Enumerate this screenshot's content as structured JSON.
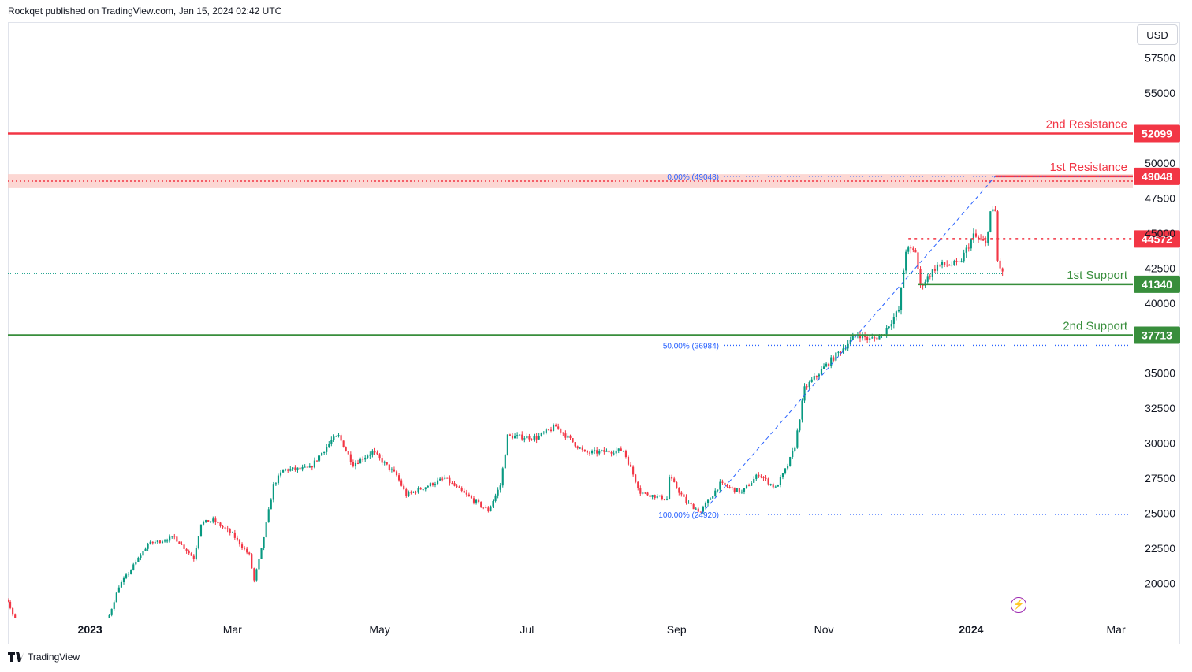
{
  "header": {
    "publisher_text": "Rockqet published on TradingView.com, Jan 15, 2024 02:42 UTC"
  },
  "currency": "USD",
  "footer": {
    "brand": "TradingView",
    "logo_icon": "tradingview-logo-icon"
  },
  "alert_icon": "lightning-icon",
  "chart_data": {
    "type": "candlestick",
    "title": "",
    "xlabel": "",
    "ylabel": "",
    "ylim": [
      17500,
      60000
    ],
    "x_range": [
      "2022-11-28",
      "2024-03-08"
    ],
    "x_ticks": [
      {
        "label": "2023",
        "date": "2023-01-01",
        "bold": true
      },
      {
        "label": "Mar",
        "date": "2023-03-01",
        "bold": false
      },
      {
        "label": "May",
        "date": "2023-05-01",
        "bold": false
      },
      {
        "label": "Jul",
        "date": "2023-07-01",
        "bold": false
      },
      {
        "label": "Sep",
        "date": "2023-09-01",
        "bold": false
      },
      {
        "label": "Nov",
        "date": "2023-11-01",
        "bold": false
      },
      {
        "label": "2024",
        "date": "2024-01-01",
        "bold": true
      },
      {
        "label": "Mar",
        "date": "2024-03-01",
        "bold": false
      }
    ],
    "y_ticks": [
      {
        "label": "57500",
        "value": 57500
      },
      {
        "label": "55000",
        "value": 55000
      },
      {
        "label": "50000",
        "value": 50000
      },
      {
        "label": "47500",
        "value": 47500
      },
      {
        "label": "45000",
        "value": 45000
      },
      {
        "label": "42500",
        "value": 42500
      },
      {
        "label": "40000",
        "value": 40000
      },
      {
        "label": "35000",
        "value": 35000
      },
      {
        "label": "32500",
        "value": 32500
      },
      {
        "label": "30000",
        "value": 30000
      },
      {
        "label": "27500",
        "value": 27500
      },
      {
        "label": "25000",
        "value": 25000
      },
      {
        "label": "22500",
        "value": 22500
      },
      {
        "label": "20000",
        "value": 20000
      }
    ],
    "colors": {
      "up": "#089981",
      "down": "#f23645",
      "resistance": "#f23645",
      "support": "#388e3c",
      "fib": "#2962ff"
    },
    "levels": [
      {
        "name": "2nd Resistance",
        "value": 52099,
        "label": "52099",
        "kind": "resistance",
        "style": "solid",
        "from": "2022-11-28"
      },
      {
        "name": "1st Resistance",
        "value": 49048,
        "label": "49048",
        "kind": "resistance",
        "style": "solid",
        "from": "2024-01-11",
        "zone": [
          48200,
          49200
        ],
        "zone_line": 48700
      },
      {
        "name": "",
        "value": 44572,
        "label": "44572",
        "kind": "resistance",
        "style": "dotted",
        "from": "2023-12-06"
      },
      {
        "name": "1st Support",
        "value": 41340,
        "label": "41340",
        "kind": "support",
        "style": "solid",
        "from": "2023-12-10"
      },
      {
        "name": "2nd Support",
        "value": 37713,
        "label": "37713",
        "kind": "support",
        "style": "solid",
        "from": "2022-11-28"
      }
    ],
    "fib_levels": [
      {
        "label": "0.00% (49048)",
        "value": 49048,
        "date": "2024-01-11"
      },
      {
        "label": "50.00% (36984)",
        "value": 36984,
        "date": "2023-11-25"
      },
      {
        "label": "100.00% (24920)",
        "value": 24920,
        "date": "2023-09-11"
      }
    ],
    "fib_line": {
      "from": [
        "2023-09-11",
        24920
      ],
      "to": [
        "2024-01-11",
        49048
      ]
    },
    "last_price": 42100,
    "last_date": "2024-01-14",
    "anchors": [
      [
        "2022-11-28",
        18800
      ],
      [
        "2022-12-01",
        17300
      ],
      [
        "2022-12-25",
        16800
      ],
      [
        "2023-01-08",
        17200
      ],
      [
        "2023-01-13",
        19800
      ],
      [
        "2023-01-18",
        21000
      ],
      [
        "2023-01-25",
        22800
      ],
      [
        "2023-02-05",
        23300
      ],
      [
        "2023-02-13",
        21800
      ],
      [
        "2023-02-16",
        24300
      ],
      [
        "2023-02-21",
        24500
      ],
      [
        "2023-03-01",
        23500
      ],
      [
        "2023-03-08",
        22000
      ],
      [
        "2023-03-10",
        20200
      ],
      [
        "2023-03-13",
        22400
      ],
      [
        "2023-03-18",
        27000
      ],
      [
        "2023-03-22",
        28100
      ],
      [
        "2023-04-02",
        28200
      ],
      [
        "2023-04-11",
        30200
      ],
      [
        "2023-04-14",
        30500
      ],
      [
        "2023-04-20",
        28500
      ],
      [
        "2023-04-28",
        29400
      ],
      [
        "2023-05-08",
        27700
      ],
      [
        "2023-05-12",
        26300
      ],
      [
        "2023-05-28",
        27500
      ],
      [
        "2023-06-05",
        26400
      ],
      [
        "2023-06-15",
        25200
      ],
      [
        "2023-06-20",
        27000
      ],
      [
        "2023-06-23",
        30500
      ],
      [
        "2023-07-05",
        30400
      ],
      [
        "2023-07-13",
        31200
      ],
      [
        "2023-07-25",
        29300
      ],
      [
        "2023-08-10",
        29500
      ],
      [
        "2023-08-17",
        26500
      ],
      [
        "2023-08-28",
        26000
      ],
      [
        "2023-08-29",
        27600
      ],
      [
        "2023-09-05",
        25800
      ],
      [
        "2023-09-11",
        25100
      ],
      [
        "2023-09-19",
        27100
      ],
      [
        "2023-09-28",
        26500
      ],
      [
        "2023-10-05",
        27800
      ],
      [
        "2023-10-12",
        26800
      ],
      [
        "2023-10-17",
        28400
      ],
      [
        "2023-10-20",
        29800
      ],
      [
        "2023-10-24",
        33900
      ],
      [
        "2023-11-01",
        35400
      ],
      [
        "2023-11-09",
        36800
      ],
      [
        "2023-11-15",
        37800
      ],
      [
        "2023-11-20",
        37400
      ],
      [
        "2023-11-25",
        37700
      ],
      [
        "2023-12-02",
        39500
      ],
      [
        "2023-12-05",
        43800
      ],
      [
        "2023-12-09",
        43700
      ],
      [
        "2023-12-11",
        41200
      ],
      [
        "2023-12-18",
        42700
      ],
      [
        "2023-12-27",
        42800
      ],
      [
        "2024-01-02",
        44800
      ],
      [
        "2024-01-07",
        44200
      ],
      [
        "2024-01-09",
        46500
      ],
      [
        "2024-01-11",
        46500
      ],
      [
        "2024-01-12",
        43000
      ],
      [
        "2024-01-14",
        42100
      ]
    ]
  },
  "labels": {
    "res2": "2nd Resistance",
    "res1": "1st Resistance",
    "sup1": "1st Support",
    "sup2": "2nd Support"
  }
}
